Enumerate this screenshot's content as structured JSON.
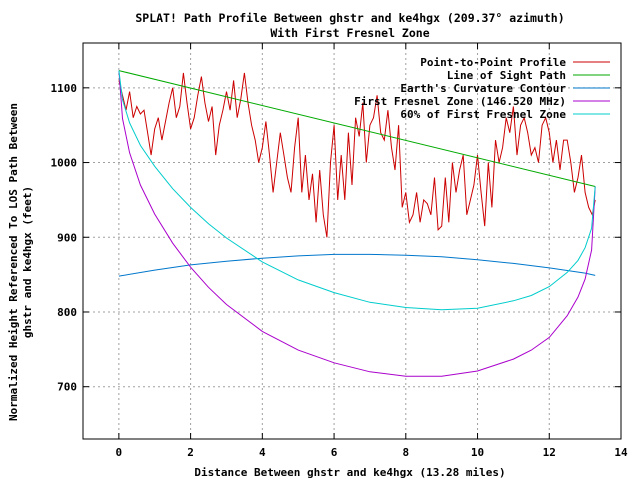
{
  "chart_data": {
    "type": "line",
    "title_line1": "SPLAT! Path Profile Between ghstr and ke4hgx (209.37° azimuth)",
    "title_line2": "With First Fresnel Zone",
    "xlabel": "Distance Between ghstr and ke4hgx (13.28 miles)",
    "ylabel_line1": "Normalized Height Referenced To LOS Path Between",
    "ylabel_line2": "ghstr and ke4hgx (feet)",
    "xlim": [
      -1,
      14
    ],
    "ylim": [
      630,
      1160
    ],
    "xticks": [
      0,
      2,
      4,
      6,
      8,
      10,
      12,
      14
    ],
    "yticks": [
      700,
      800,
      900,
      1000,
      1100
    ],
    "grid": true,
    "legend_position": "top-right",
    "series": [
      {
        "name": "Point-to-Point Profile",
        "color": "#cc0000",
        "x": [
          0,
          0.1,
          0.2,
          0.3,
          0.4,
          0.5,
          0.6,
          0.7,
          0.8,
          0.9,
          1.0,
          1.1,
          1.2,
          1.3,
          1.4,
          1.5,
          1.6,
          1.7,
          1.8,
          1.9,
          2.0,
          2.1,
          2.2,
          2.3,
          2.4,
          2.5,
          2.6,
          2.7,
          2.8,
          2.9,
          3.0,
          3.1,
          3.2,
          3.3,
          3.4,
          3.5,
          3.6,
          3.7,
          3.8,
          3.9,
          4.0,
          4.1,
          4.2,
          4.3,
          4.4,
          4.5,
          4.6,
          4.7,
          4.8,
          4.9,
          5.0,
          5.1,
          5.2,
          5.3,
          5.4,
          5.5,
          5.6,
          5.7,
          5.8,
          5.9,
          6.0,
          6.1,
          6.2,
          6.3,
          6.4,
          6.5,
          6.6,
          6.7,
          6.8,
          6.9,
          7.0,
          7.1,
          7.2,
          7.3,
          7.4,
          7.5,
          7.6,
          7.7,
          7.8,
          7.9,
          8.0,
          8.1,
          8.2,
          8.3,
          8.4,
          8.5,
          8.6,
          8.7,
          8.8,
          8.9,
          9.0,
          9.1,
          9.2,
          9.3,
          9.4,
          9.5,
          9.6,
          9.7,
          9.8,
          9.9,
          10.0,
          10.1,
          10.2,
          10.3,
          10.4,
          10.5,
          10.6,
          10.7,
          10.8,
          10.9,
          11.0,
          11.1,
          11.2,
          11.3,
          11.4,
          11.5,
          11.6,
          11.7,
          11.8,
          11.9,
          12.0,
          12.1,
          12.2,
          12.3,
          12.4,
          12.5,
          12.6,
          12.7,
          12.8,
          12.9,
          13.0,
          13.1,
          13.2,
          13.28
        ],
        "values": [
          1110,
          1090,
          1070,
          1095,
          1060,
          1075,
          1065,
          1070,
          1040,
          1010,
          1045,
          1060,
          1030,
          1055,
          1080,
          1100,
          1060,
          1075,
          1120,
          1080,
          1045,
          1060,
          1090,
          1115,
          1080,
          1055,
          1075,
          1010,
          1050,
          1070,
          1095,
          1070,
          1110,
          1060,
          1085,
          1120,
          1080,
          1050,
          1030,
          1000,
          1020,
          1055,
          1010,
          960,
          1000,
          1040,
          1010,
          980,
          960,
          1020,
          1060,
          960,
          1010,
          950,
          985,
          920,
          990,
          930,
          900,
          1000,
          1050,
          950,
          1010,
          950,
          1040,
          970,
          1060,
          1035,
          1080,
          1000,
          1050,
          1060,
          1090,
          1040,
          1030,
          1070,
          1020,
          990,
          1050,
          940,
          960,
          920,
          930,
          960,
          920,
          950,
          945,
          930,
          980,
          910,
          915,
          980,
          920,
          1000,
          960,
          990,
          1010,
          930,
          950,
          970,
          1010,
          960,
          915,
          1000,
          940,
          1030,
          1000,
          1020,
          1060,
          1040,
          1075,
          1010,
          1050,
          1060,
          1040,
          1010,
          1020,
          1000,
          1050,
          1060,
          1040,
          1000,
          1030,
          990,
          1030,
          1030,
          1000,
          960,
          980,
          1010,
          960,
          940,
          930,
          950
        ]
      },
      {
        "name": "Line of Sight Path",
        "color": "#00aa00",
        "x": [
          0,
          13.28
        ],
        "values": [
          1123,
          968
        ]
      },
      {
        "name": "Earth's Curvature Contour",
        "color": "#0077cc",
        "x": [
          0,
          1,
          2,
          3,
          4,
          5,
          6,
          6.64,
          7,
          8,
          9,
          10,
          11,
          12,
          13,
          13.28
        ],
        "values": [
          848,
          856,
          863,
          868,
          872,
          875,
          877,
          877,
          877,
          876,
          874,
          870,
          865,
          859,
          852,
          849
        ]
      },
      {
        "name": "First Fresnel Zone (146.520 MHz)",
        "color": "#aa00cc",
        "x": [
          0,
          0.1,
          0.3,
          0.6,
          1,
          1.5,
          2,
          2.5,
          3,
          4,
          5,
          6,
          7,
          8,
          9,
          10,
          11,
          11.5,
          12,
          12.5,
          12.8,
          13,
          13.18,
          13.28
        ],
        "values": [
          1123,
          1059,
          1013,
          970,
          931,
          892,
          860,
          833,
          810,
          774,
          749,
          732,
          720,
          714,
          714,
          721,
          737,
          749,
          766,
          795,
          820,
          844,
          883,
          968
        ]
      },
      {
        "name": "60% of First Fresnel Zone",
        "color": "#00cccc",
        "x": [
          0,
          0.1,
          0.3,
          0.6,
          1,
          1.5,
          2,
          2.5,
          3,
          4,
          5,
          6,
          7,
          8,
          9,
          10,
          11,
          11.5,
          12,
          12.5,
          12.8,
          13,
          13.18,
          13.28
        ],
        "values": [
          1123,
          1084,
          1053,
          1023,
          995,
          965,
          940,
          918,
          899,
          867,
          843,
          826,
          813,
          806,
          803,
          805,
          815,
          822,
          834,
          853,
          869,
          886,
          912,
          968
        ]
      }
    ]
  }
}
